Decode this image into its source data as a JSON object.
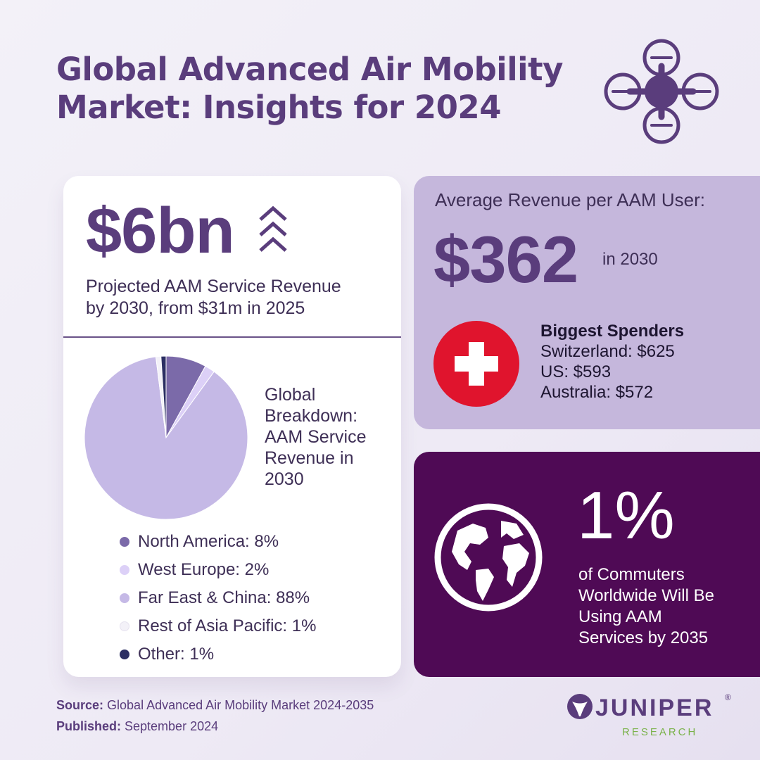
{
  "header": {
    "title_line1": "Global Advanced Air Mobility",
    "title_line2": "Market: Insights for 2024"
  },
  "revenue_card": {
    "value": "$6bn",
    "description_line1": "Projected AAM Service Revenue",
    "description_line2": "by 2030, from $31m in 2025",
    "pie_title_lines": [
      "Global",
      "Breakdown:",
      "AAM Service",
      "Revenue in",
      "2030"
    ]
  },
  "chart_data": {
    "type": "pie",
    "title": "Global Breakdown: AAM Service Revenue in 2030",
    "slices": [
      {
        "label": "North America: 8%",
        "value": 8,
        "color": "#7b6aa9"
      },
      {
        "label": "West Europe: 2%",
        "value": 2,
        "color": "#dcd0f7"
      },
      {
        "label": "Far East & China: 88%",
        "value": 88,
        "color": "#c5b9e6"
      },
      {
        "label": "Rest of Asia Pacific: 1%",
        "value": 1,
        "color": "#f3f1f8"
      },
      {
        "label": "Other: 1%",
        "value": 1,
        "color": "#2c2f63"
      }
    ]
  },
  "arpu_card": {
    "label": "Average Revenue per AAM User:",
    "value": "$362",
    "year": "in 2030",
    "spenders_heading": "Biggest Spenders",
    "spenders": [
      "Switzerland: $625",
      "US: $593",
      "Australia: $572"
    ],
    "flag_icon": "swiss-flag-icon"
  },
  "commuters_card": {
    "value": "1%",
    "description_lines": [
      "of Commuters",
      "Worldwide Will Be",
      "Using AAM",
      "Services by 2035"
    ],
    "icon": "globe-icon"
  },
  "footer": {
    "source_label": "Source:",
    "source_text": " Global Advanced Air Mobility Market 2024-2035",
    "published_label": "Published:",
    "published_text": " September 2024"
  },
  "logo": {
    "name": "JUNIPER",
    "registered": "®",
    "subtitle": "RESEARCH"
  },
  "colors": {
    "brand_purple": "#5a3d7c",
    "lavender_card": "#c5b7dc",
    "dark_purple_card": "#4f0a55",
    "swiss_red": "#e0142d",
    "juniper_green": "#7ab24a"
  }
}
